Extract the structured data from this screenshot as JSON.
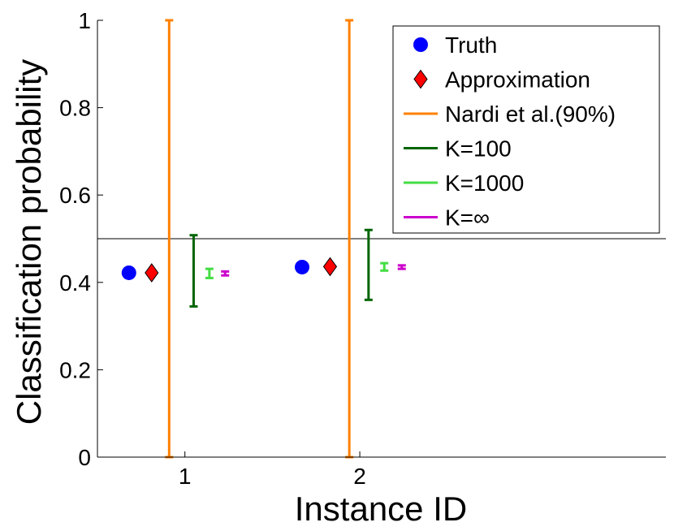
{
  "chart_data": {
    "type": "scatter",
    "title": "",
    "xlabel": "Instance ID",
    "ylabel": "Classification probability",
    "ylim": [
      0,
      1
    ],
    "xlim": [
      0.5,
      3.75
    ],
    "x_ticks": [
      1,
      2
    ],
    "x_tick_labels": [
      "1",
      "2"
    ],
    "y_ticks": [
      0,
      0.2,
      0.4,
      0.6,
      0.8,
      1
    ],
    "y_tick_labels": [
      "0",
      "0.2",
      "0.4",
      "0.6",
      "0.8",
      "1"
    ],
    "reference_line": {
      "y": 0.5
    },
    "legend_position": "top-right",
    "series": [
      {
        "name": "Truth",
        "marker": "circle",
        "color": "#0000ff",
        "points": [
          {
            "instance": 1,
            "x": 0.68,
            "y": 0.422
          },
          {
            "instance": 2,
            "x": 1.67,
            "y": 0.435
          }
        ]
      },
      {
        "name": "Approximation",
        "marker": "diamond",
        "color": "#ff0000",
        "points": [
          {
            "instance": 1,
            "x": 0.81,
            "y": 0.422
          },
          {
            "instance": 2,
            "x": 1.83,
            "y": 0.436
          }
        ]
      },
      {
        "name": "Nardi et al.(90%)",
        "marker": "errorbar",
        "color": "#ff8000",
        "intervals": [
          {
            "instance": 1,
            "x": 0.91,
            "low": 0.0,
            "high": 1.0
          },
          {
            "instance": 2,
            "x": 1.94,
            "low": 0.0,
            "high": 1.0
          }
        ]
      },
      {
        "name": "K=100",
        "marker": "errorbar",
        "color": "#006400",
        "intervals": [
          {
            "instance": 1,
            "x": 1.05,
            "low": 0.345,
            "high": 0.508
          },
          {
            "instance": 2,
            "x": 2.05,
            "low": 0.36,
            "high": 0.52
          }
        ]
      },
      {
        "name": "K=1000",
        "marker": "errorbar",
        "color": "#44dd44",
        "intervals": [
          {
            "instance": 1,
            "x": 1.14,
            "low": 0.41,
            "high": 0.431
          },
          {
            "instance": 2,
            "x": 2.14,
            "low": 0.427,
            "high": 0.444
          }
        ]
      },
      {
        "name": "K=∞",
        "marker": "errorbar",
        "color": "#cc00cc",
        "intervals": [
          {
            "instance": 1,
            "x": 1.23,
            "low": 0.416,
            "high": 0.425
          },
          {
            "instance": 2,
            "x": 2.24,
            "low": 0.431,
            "high": 0.439
          }
        ]
      }
    ]
  }
}
